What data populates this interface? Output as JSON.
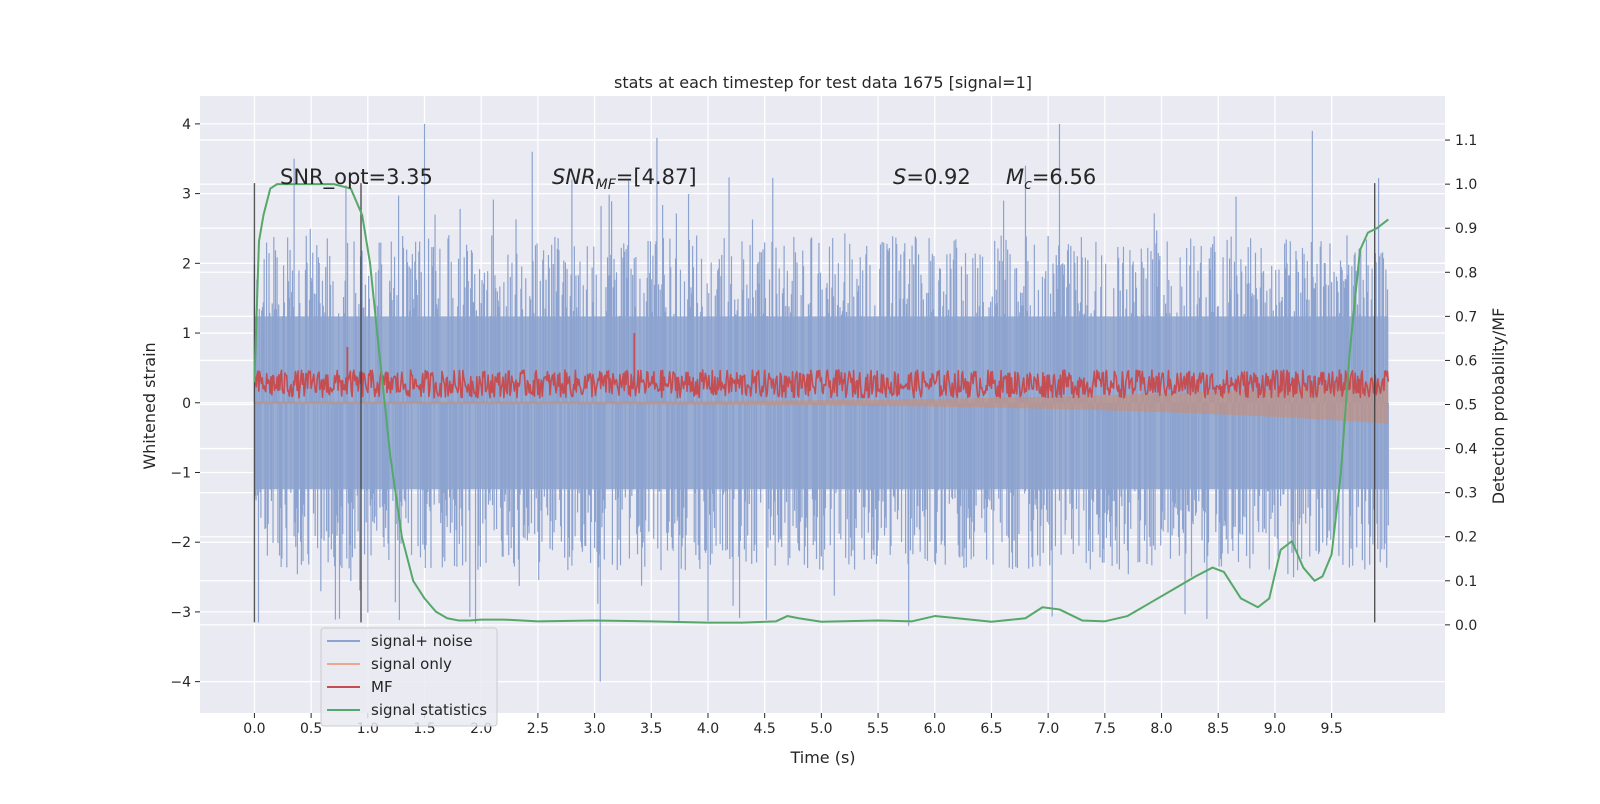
{
  "chart_data": {
    "type": "line",
    "title": "stats at each timestep for test data 1675 [signal=1]",
    "xlabel": "Time (s)",
    "ylabel_left": "Whitened strain",
    "ylabel_right": "Detection probability/MF",
    "xlim": [
      -0.48,
      10.5
    ],
    "ylim_left": [
      -4.45,
      4.4
    ],
    "ylim_right": [
      -0.2,
      1.2
    ],
    "x_ticks": [
      "0.0",
      "0.5",
      "1.0",
      "1.5",
      "2.0",
      "2.5",
      "3.0",
      "3.5",
      "4.0",
      "4.5",
      "5.0",
      "5.5",
      "6.0",
      "6.5",
      "7.0",
      "7.5",
      "8.0",
      "8.5",
      "9.0",
      "9.5"
    ],
    "y_ticks_left": [
      "4",
      "3",
      "2",
      "1",
      "0",
      "−1",
      "−2",
      "−3",
      "−4"
    ],
    "y_ticks_right": [
      "1.1",
      "1.0",
      "0.9",
      "0.8",
      "0.7",
      "0.6",
      "0.5",
      "0.4",
      "0.3",
      "0.2",
      "0.1",
      "0.0"
    ],
    "grid": true,
    "legend_placement": "lower-left",
    "legend": [
      "signal+ noise",
      "signal only",
      "MF",
      "signal statistics"
    ],
    "annotations": {
      "snr_opt": "SNR_opt=3.35",
      "snr_mf_main": "SNR",
      "snr_mf_sub": "MF",
      "snr_mf_rest": "=[4.87]",
      "s_main": "S",
      "s_rest": "=0.92",
      "mc_main": "M",
      "mc_sub": "c",
      "mc_rest": "=6.56"
    },
    "vertical_lines_x": [
      0.0,
      0.94,
      9.88
    ],
    "vertical_lines_ylim_left": [
      -3.15,
      3.15
    ],
    "series": [
      {
        "name": "signal+ noise",
        "axis": "left",
        "color": "#4c72b0",
        "x_range": [
          0.0,
          10.0
        ],
        "envelope_upper": 1.55,
        "envelope_lower": -1.55,
        "peaks": [
          [
            1.5,
            4.0
          ],
          [
            7.1,
            4.0
          ],
          [
            9.33,
            3.9
          ],
          [
            3.55,
            3.8
          ],
          [
            2.45,
            3.6
          ],
          [
            0.35,
            3.5
          ],
          [
            3.05,
            -4.0
          ],
          [
            5.77,
            -3.2
          ],
          [
            0.75,
            -3.1
          ],
          [
            8.4,
            -3.1
          ],
          [
            2.8,
            3.2
          ],
          [
            6.8,
            3.4
          ]
        ]
      },
      {
        "name": "signal only",
        "axis": "left",
        "color": "#dd8452",
        "x_range": [
          0.0,
          10.0
        ],
        "amplitude_start": 0.02,
        "amplitude_end": 0.3
      },
      {
        "name": "MF",
        "axis": "left",
        "color": "#c44e52",
        "x_range": [
          0.0,
          10.0
        ],
        "mean": 0.27,
        "spread": 0.2,
        "peaks": [
          [
            3.35,
            1.0
          ],
          [
            0.82,
            0.8
          ]
        ]
      },
      {
        "name": "signal statistics",
        "axis": "right",
        "color": "#55a868",
        "x": [
          0.0,
          0.04,
          0.08,
          0.14,
          0.2,
          0.3,
          0.5,
          0.7,
          0.85,
          0.95,
          1.02,
          1.1,
          1.2,
          1.3,
          1.4,
          1.5,
          1.6,
          1.7,
          1.8,
          1.9,
          2.0,
          2.2,
          2.5,
          3.0,
          3.5,
          4.0,
          4.3,
          4.6,
          4.7,
          4.8,
          5.0,
          5.5,
          5.8,
          6.0,
          6.2,
          6.5,
          6.8,
          6.95,
          7.1,
          7.3,
          7.5,
          7.7,
          7.9,
          8.1,
          8.3,
          8.45,
          8.55,
          8.7,
          8.85,
          8.95,
          9.05,
          9.15,
          9.25,
          9.35,
          9.42,
          9.5,
          9.58,
          9.66,
          9.75,
          9.82,
          9.9,
          10.0
        ],
        "y": [
          0.55,
          0.87,
          0.93,
          0.99,
          1.0,
          1.0,
          1.0,
          1.0,
          0.99,
          0.93,
          0.82,
          0.62,
          0.38,
          0.2,
          0.1,
          0.06,
          0.03,
          0.015,
          0.01,
          0.01,
          0.012,
          0.012,
          0.008,
          0.01,
          0.008,
          0.005,
          0.005,
          0.008,
          0.02,
          0.015,
          0.007,
          0.01,
          0.008,
          0.02,
          0.015,
          0.007,
          0.015,
          0.04,
          0.035,
          0.01,
          0.008,
          0.02,
          0.05,
          0.08,
          0.11,
          0.13,
          0.12,
          0.06,
          0.04,
          0.06,
          0.17,
          0.19,
          0.13,
          0.1,
          0.11,
          0.16,
          0.34,
          0.62,
          0.85,
          0.89,
          0.9,
          0.92
        ]
      }
    ]
  }
}
